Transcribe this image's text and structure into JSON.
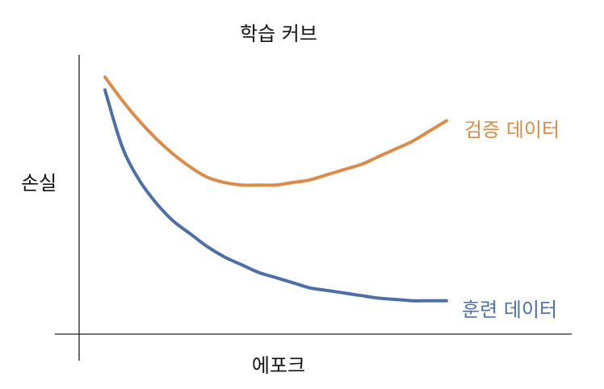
{
  "chart_data": {
    "type": "line",
    "title": "학습 커브",
    "xlabel": "에포크",
    "ylabel": "손실",
    "grid": false,
    "legend": "inline-right",
    "x": [
      0,
      0.05,
      0.1,
      0.15,
      0.2,
      0.25,
      0.3,
      0.35,
      0.4,
      0.45,
      0.5,
      0.55,
      0.6,
      0.65,
      0.7,
      0.75,
      0.8,
      0.85,
      0.9,
      0.95,
      1.0
    ],
    "series": [
      {
        "name": "검증 데이터",
        "color": "#D98C4A",
        "values": [
          0.92,
          0.83,
          0.75,
          0.68,
          0.62,
          0.57,
          0.53,
          0.51,
          0.5,
          0.5,
          0.5,
          0.51,
          0.52,
          0.54,
          0.56,
          0.58,
          0.61,
          0.64,
          0.67,
          0.71,
          0.75
        ]
      },
      {
        "name": "훈련 데이터",
        "color": "#4E6FA3",
        "values": [
          0.87,
          0.65,
          0.52,
          0.43,
          0.36,
          0.31,
          0.26,
          0.22,
          0.19,
          0.16,
          0.14,
          0.12,
          0.1,
          0.09,
          0.08,
          0.07,
          0.06,
          0.055,
          0.05,
          0.05,
          0.05
        ]
      }
    ],
    "xlim": [
      0,
      1
    ],
    "ylim": [
      -0.08,
      1.0
    ]
  }
}
